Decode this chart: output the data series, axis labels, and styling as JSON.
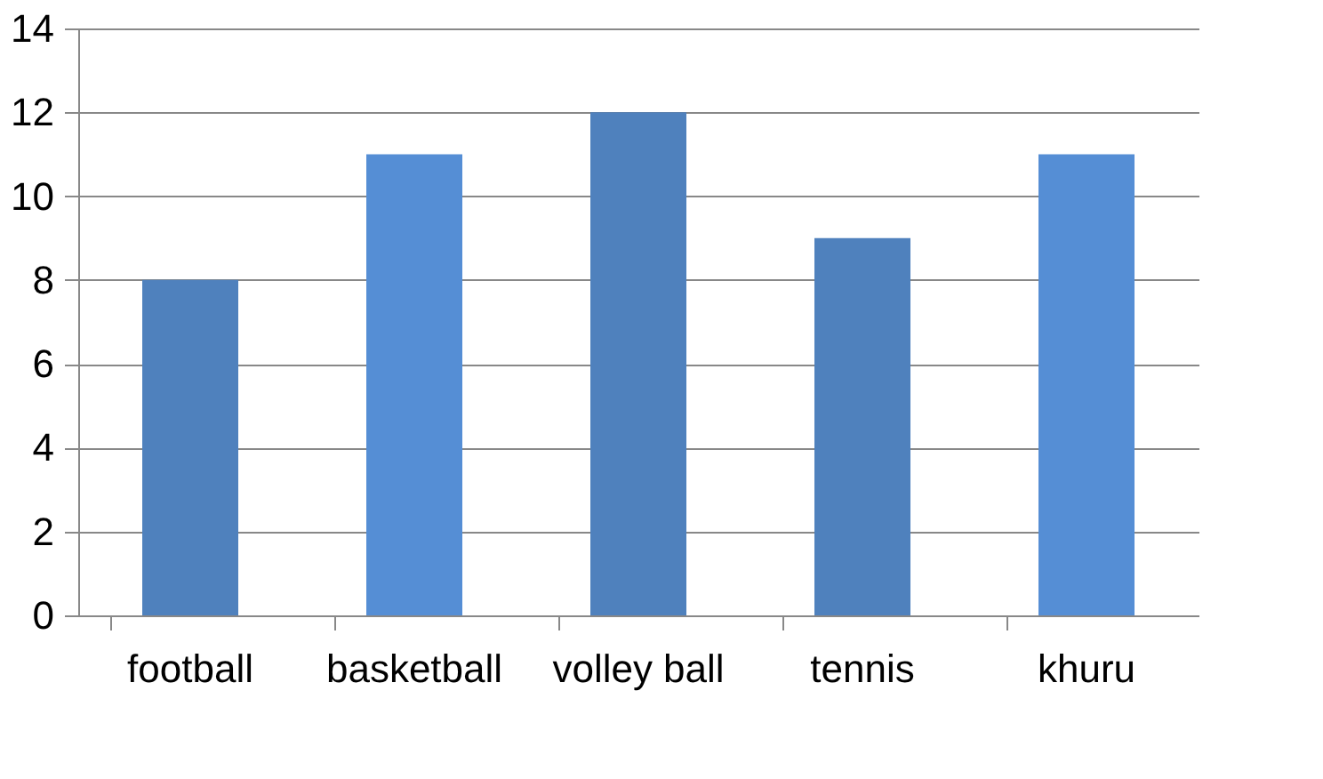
{
  "chart_data": {
    "type": "bar",
    "categories": [
      "football",
      "basketball",
      "volley ball",
      "tennis",
      "khuru"
    ],
    "values": [
      8,
      11,
      12,
      9,
      11
    ],
    "colors": [
      "#4f81bd",
      "#558ed5",
      "#4f81bd",
      "#4f81bd",
      "#558ed5"
    ],
    "ylim": [
      0,
      14
    ],
    "yticks": [
      0,
      2,
      4,
      6,
      8,
      10,
      12,
      14
    ],
    "grid": "y"
  }
}
